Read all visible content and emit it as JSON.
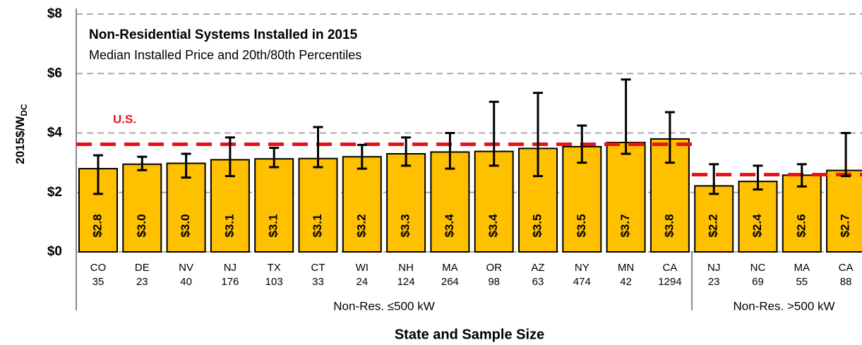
{
  "chart_data": {
    "type": "bar",
    "title": "Non-Residential Systems Installed in 2015",
    "subtitle": "Median Installed Price and 20th/80th Percentiles",
    "ylabel": {
      "main": "2015$/W",
      "sub": "DC"
    },
    "xlabel": "State and Sample Size",
    "categories": [
      "CO",
      "DE",
      "NV",
      "NJ",
      "TX",
      "CT",
      "WI",
      "NH",
      "MA",
      "OR",
      "AZ",
      "NY",
      "MN",
      "CA",
      "NJ",
      "NC",
      "MA",
      "CA"
    ],
    "sample_sizes": [
      "35",
      "23",
      "40",
      "176",
      "103",
      "33",
      "24",
      "124",
      "264",
      "98",
      "63",
      "474",
      "42",
      "1294",
      "23",
      "69",
      "55",
      "88"
    ],
    "series": [
      {
        "name": "Median",
        "color": "#ffc000",
        "values": [
          2.8,
          2.95,
          2.98,
          3.1,
          3.13,
          3.14,
          3.2,
          3.3,
          3.36,
          3.38,
          3.48,
          3.54,
          3.68,
          3.8,
          2.22,
          2.37,
          2.58,
          2.74
        ],
        "value_labels": [
          "$2.8",
          "$3.0",
          "$3.0",
          "$3.1",
          "$3.1",
          "$3.1",
          "$3.2",
          "$3.3",
          "$3.4",
          "$3.4",
          "$3.5",
          "$3.5",
          "$3.7",
          "$3.8",
          "$2.2",
          "$2.4",
          "$2.6",
          "$2.7"
        ],
        "p20": [
          1.95,
          2.75,
          2.5,
          2.55,
          2.85,
          2.85,
          2.8,
          2.9,
          2.8,
          2.9,
          2.55,
          3.0,
          3.3,
          3.0,
          1.95,
          2.1,
          2.2,
          2.55
        ],
        "p80": [
          3.25,
          3.2,
          3.3,
          3.85,
          3.5,
          4.2,
          3.6,
          3.85,
          4.0,
          5.05,
          5.35,
          4.25,
          5.8,
          4.7,
          2.95,
          2.9,
          2.95,
          4.0
        ]
      }
    ],
    "groups": [
      {
        "name": "Non-Res. ≤500 kW",
        "first": 0,
        "last": 13,
        "us": 3.62
      },
      {
        "name": "Non-Res. >500 kW",
        "first": 14,
        "last": 17,
        "us": 2.6
      }
    ],
    "reference_label": "U.S.",
    "reference_color": "#e8121b",
    "ylim": [
      0,
      8
    ],
    "yticks": [
      {
        "value": 0,
        "label": "$0"
      },
      {
        "value": 2,
        "label": "$2"
      },
      {
        "value": 4,
        "label": "$4"
      },
      {
        "value": 6,
        "label": "$6"
      },
      {
        "value": 8,
        "label": "$8"
      }
    ],
    "grid": true
  }
}
